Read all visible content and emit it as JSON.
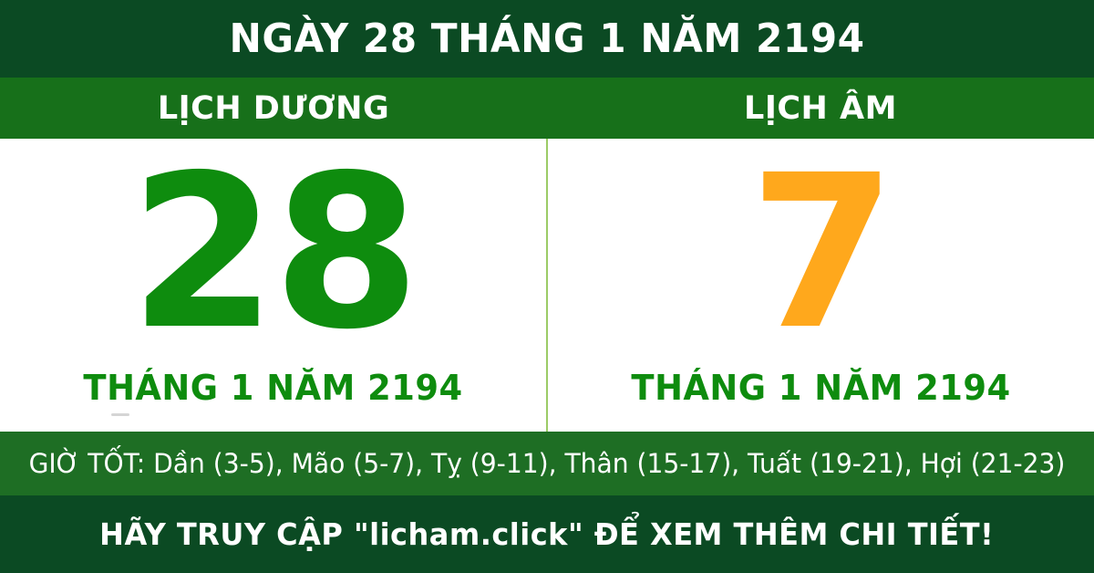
{
  "header": {
    "title": "NGÀY 28 THÁNG 1 NĂM 2194"
  },
  "calendar": {
    "solar": {
      "label": "LỊCH DƯƠNG",
      "day": "28",
      "month_year": "THÁNG 1 NĂM 2194"
    },
    "lunar": {
      "label": "LỊCH ÂM",
      "day": "7",
      "month_year": "THÁNG 1 NĂM 2194"
    }
  },
  "good_hours": {
    "text": "GIỜ TỐT: Dần (3-5), Mão (5-7), Tỵ (9-11), Thân (15-17), Tuất (19-21), Hợi (21-23)"
  },
  "footer": {
    "text": "HÃY TRUY CẬP \"licham.click\" ĐỂ XEM THÊM CHI TIẾT!"
  },
  "colors": {
    "dark_green": "#0B4A23",
    "medium_green": "#17701A",
    "good_hours_green": "#1E6E24",
    "day_green": "#0E8C0E",
    "day_orange": "#FFA81C",
    "divider_green": "#9CCB66",
    "white": "#FFFFFF"
  }
}
